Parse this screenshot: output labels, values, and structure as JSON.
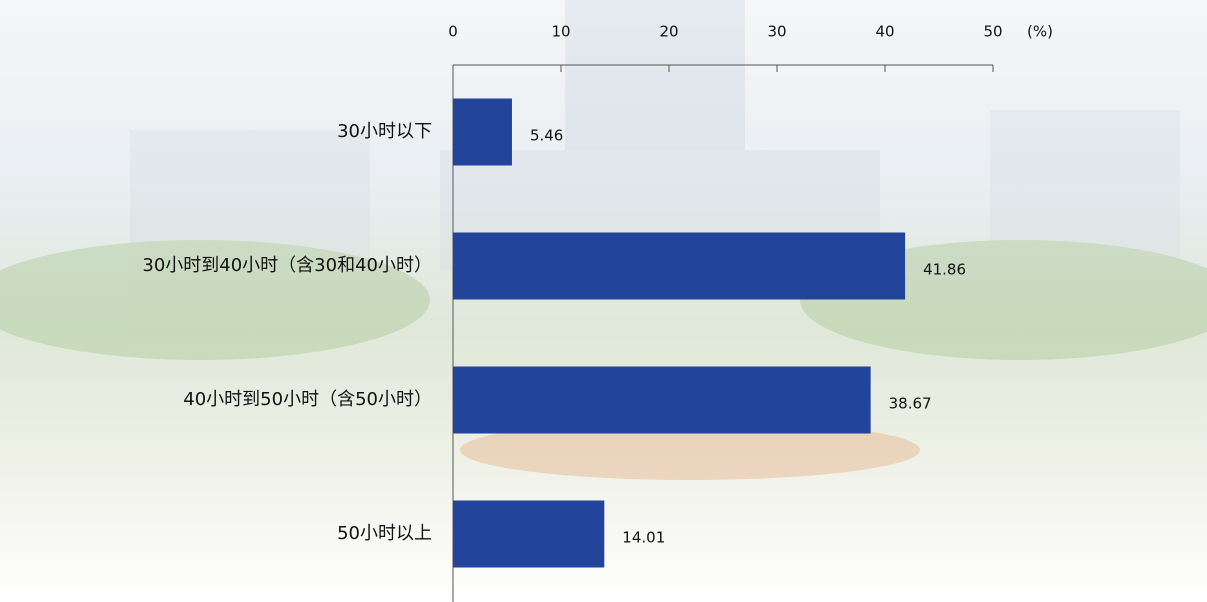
{
  "chart_data": {
    "type": "barh",
    "categories": [
      "30小时以下",
      "30小时到40小时（含30和40小时）",
      "40小时到50小时（含50小时）",
      "50小时以上"
    ],
    "values": [
      5.46,
      41.86,
      38.67,
      14.01
    ],
    "color": "#22449a",
    "x_unit": "(%)",
    "xlim": [
      0,
      50
    ],
    "xticks": [
      0,
      10,
      20,
      30,
      40,
      50
    ]
  }
}
